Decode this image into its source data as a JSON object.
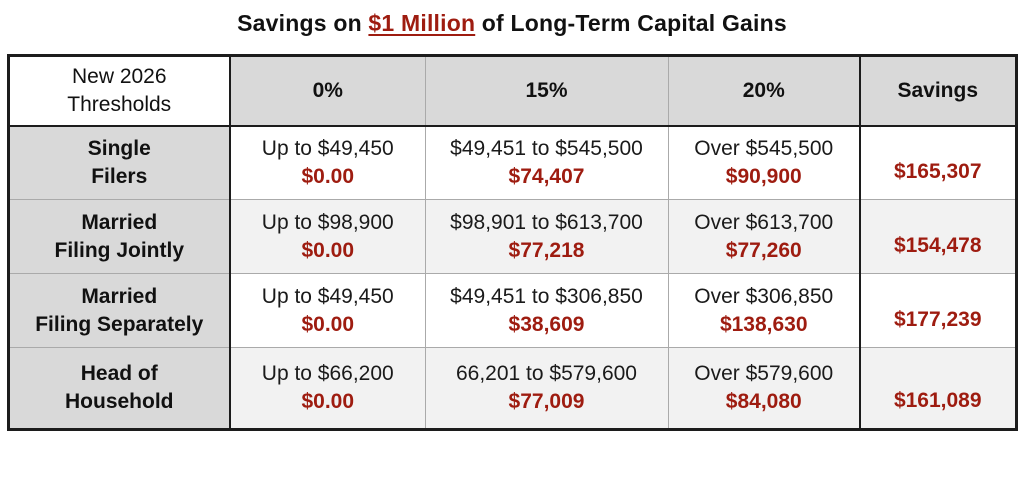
{
  "title": {
    "prefix": "Savings on ",
    "highlight": "$1 Million",
    "suffix": " of Long-Term Capital Gains"
  },
  "colors": {
    "accent_red": "#9e1c10",
    "header_bg": "#d9d9d9",
    "label_bg": "#d9d9d9",
    "alt_row_bg": "#f2f2f2",
    "border_dark": "#1c1c1c",
    "border_light": "#aaaaaa"
  },
  "table": {
    "corner_header": {
      "line1": "New 2026",
      "line2": "Thresholds"
    },
    "columns": {
      "c0": "0%",
      "c1": "15%",
      "c2": "20%",
      "c3": "Savings"
    },
    "rows": [
      {
        "label1": "Single",
        "label2": "Filers",
        "c0_range": "Up to $49,450",
        "c0_amount": "$0.00",
        "c1_range": "$49,451 to $545,500",
        "c1_amount": "$74,407",
        "c2_range": "Over $545,500",
        "c2_amount": "$90,900",
        "savings": "$165,307"
      },
      {
        "label1": "Married",
        "label2": "Filing Jointly",
        "c0_range": "Up to $98,900",
        "c0_amount": "$0.00",
        "c1_range": "$98,901 to $613,700",
        "c1_amount": "$77,218",
        "c2_range": "Over $613,700",
        "c2_amount": "$77,260",
        "savings": "$154,478"
      },
      {
        "label1": "Married",
        "label2": "Filing Separately",
        "c0_range": "Up to $49,450",
        "c0_amount": "$0.00",
        "c1_range": "$49,451 to $306,850",
        "c1_amount": "$38,609",
        "c2_range": "Over $306,850",
        "c2_amount": "$138,630",
        "savings": "$177,239"
      },
      {
        "label1": "Head of",
        "label2": "Household",
        "c0_range": "Up to $66,200",
        "c0_amount": "$0.00",
        "c1_range": "66,201 to $579,600",
        "c1_amount": "$77,009",
        "c2_range": "Over $579,600",
        "c2_amount": "$84,080",
        "savings": "$161,089"
      }
    ]
  },
  "chart_data": {
    "type": "table",
    "title": "Savings on $1 Million of Long-Term Capital Gains",
    "columns": [
      "New 2026 Thresholds",
      "0%",
      "15%",
      "20%",
      "Savings"
    ],
    "rows": [
      [
        "Single Filers",
        "Up to $49,450 | $0.00",
        "$49,451 to $545,500 | $74,407",
        "Over $545,500 | $90,900",
        "$165,307"
      ],
      [
        "Married Filing Jointly",
        "Up to $98,900 | $0.00",
        "$98,901 to $613,700 | $77,218",
        "Over $613,700 | $77,260",
        "$154,478"
      ],
      [
        "Married Filing Separately",
        "Up to $49,450 | $0.00",
        "$49,451 to $306,850 | $38,609",
        "Over $306,850 | $138,630",
        "$177,239"
      ],
      [
        "Head of Household",
        "Up to $66,200 | $0.00",
        "66,201 to $579,600 | $77,009",
        "Over $579,600 | $84,080",
        "$161,089"
      ]
    ]
  }
}
